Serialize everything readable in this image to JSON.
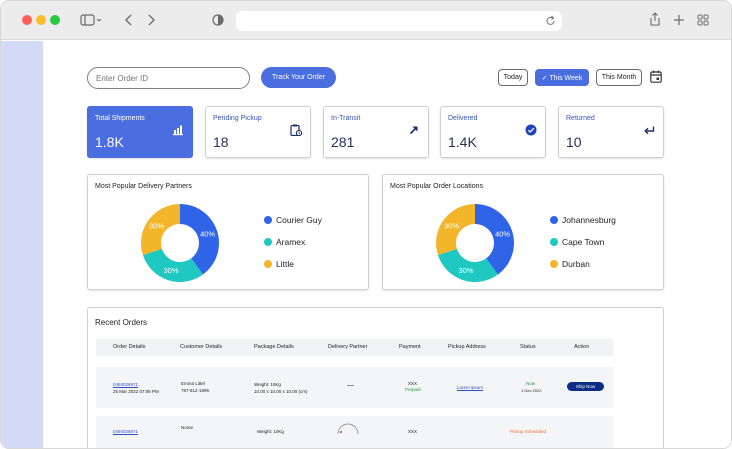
{
  "search": {
    "placeholder": "Enter Order ID"
  },
  "track_label": "Track Your Order",
  "filters": {
    "today": "Today",
    "this_week": "This Week",
    "this_month": "This Month"
  },
  "colors": {
    "accent": "#4a6ee0",
    "blue": "#2f64e8",
    "teal": "#1fc8c0",
    "yellow": "#f3b62b",
    "sidebar": "#d3daf6",
    "navy_button": "#0c2d85"
  },
  "stats": [
    {
      "label": "Total Shipments",
      "value": "1.8K",
      "icon": "bar-chart-icon"
    },
    {
      "label": "Pending Pickup",
      "value": "18",
      "icon": "clipboard-clock-icon"
    },
    {
      "label": "In-Transit",
      "value": "281",
      "icon": "arrow-up-right-icon"
    },
    {
      "label": "Delivered",
      "value": "1.4K",
      "icon": "check-circle-icon"
    },
    {
      "label": "Returned",
      "value": "10",
      "icon": "return-arrow-icon"
    }
  ],
  "partners": {
    "title": "Most Popular Delivery Partners",
    "segments": [
      {
        "name": "Courier Guy",
        "percent": 40,
        "label": "40%",
        "color": "#2f64e8"
      },
      {
        "name": "Aramex",
        "percent": 30,
        "label": "30%",
        "color": "#1fc8c0"
      },
      {
        "name": "Little",
        "percent": 30,
        "label": "30%",
        "color": "#f3b62b"
      }
    ]
  },
  "locations": {
    "title": "Most Popular Order Locations",
    "segments": [
      {
        "name": "Johannesburg",
        "percent": 40,
        "label": "40%",
        "color": "#2f64e8"
      },
      {
        "name": "Cape Town",
        "percent": 30,
        "label": "30%",
        "color": "#1fc8c0"
      },
      {
        "name": "Durban",
        "percent": 30,
        "label": "30%",
        "color": "#f3b62b"
      }
    ]
  },
  "orders": {
    "title": "Recent Orders",
    "columns": [
      "Order Details",
      "Customer Details",
      "Package Details",
      "Delivery Partner",
      "Payment",
      "Pickup Address",
      "Status",
      "Action"
    ],
    "rows": [
      {
        "order_id": "0494026971",
        "order_date": "25 Mar 2022 07:06 PM",
        "customer_name": "Emma Littel",
        "customer_phone": "787-612-1995",
        "weight": "Weight: 10Kg",
        "dims": "10.00 x 10.00 x 10.00 (cm)",
        "partner": "—",
        "payment": "XXX",
        "payment_status": "Prepaid",
        "address": "Lorem ipsum",
        "status": "Now",
        "status_sub": "1 Dec 2022",
        "action": "Ship Now"
      },
      {
        "order_id": "0494026971",
        "customer_name": "Nome",
        "weight": "Weight: 10Kg",
        "payment": "XXX",
        "status": "Pickup Scheduled"
      }
    ]
  }
}
